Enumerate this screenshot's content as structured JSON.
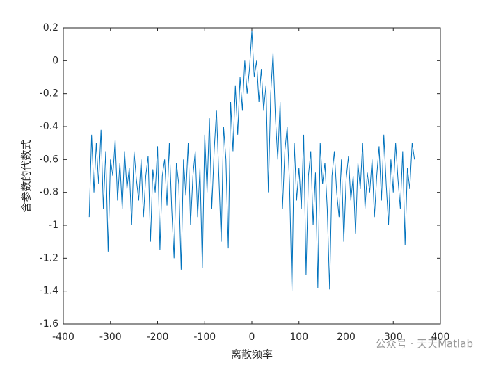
{
  "chart_data": {
    "type": "line",
    "x_label": "离散频率",
    "y_label": "含参数的代数式",
    "watermark": "公众号 · 天天Matlab",
    "xlim": [
      -400,
      400
    ],
    "xticks": [
      -400,
      -300,
      -200,
      -100,
      0,
      100,
      200,
      300,
      400
    ],
    "ylim": [
      -1.6,
      0.2
    ],
    "yticks": [
      0.2,
      0,
      -0.2,
      -0.4,
      -0.6,
      -0.8,
      -1,
      -1.2,
      -1.4,
      -1.6
    ],
    "x": [
      -345,
      -340,
      -335,
      -330,
      -325,
      -320,
      -315,
      -310,
      -305,
      -300,
      -295,
      -290,
      -285,
      -280,
      -275,
      -270,
      -265,
      -260,
      -255,
      -250,
      -245,
      -240,
      -235,
      -230,
      -225,
      -220,
      -215,
      -210,
      -205,
      -200,
      -195,
      -190,
      -185,
      -180,
      -175,
      -170,
      -165,
      -160,
      -155,
      -150,
      -145,
      -140,
      -135,
      -130,
      -125,
      -120,
      -115,
      -110,
      -105,
      -100,
      -95,
      -90,
      -85,
      -80,
      -75,
      -70,
      -65,
      -60,
      -55,
      -50,
      -45,
      -40,
      -35,
      -30,
      -25,
      -20,
      -15,
      -10,
      -5,
      0,
      5,
      10,
      15,
      20,
      25,
      30,
      35,
      40,
      45,
      50,
      55,
      60,
      65,
      70,
      75,
      80,
      85,
      90,
      95,
      100,
      105,
      110,
      115,
      120,
      125,
      130,
      135,
      140,
      145,
      150,
      155,
      160,
      165,
      170,
      175,
      180,
      185,
      190,
      195,
      200,
      205,
      210,
      215,
      220,
      225,
      230,
      235,
      240,
      245,
      250,
      255,
      260,
      265,
      270,
      275,
      280,
      285,
      290,
      295,
      300,
      305,
      310,
      315,
      320,
      325,
      330,
      335,
      340,
      345
    ],
    "series": [
      {
        "color": "#0072bd",
        "values": [
          -0.95,
          -0.45,
          -0.8,
          -0.5,
          -0.75,
          -0.42,
          -0.9,
          -0.55,
          -1.16,
          -0.6,
          -0.7,
          -0.48,
          -0.85,
          -0.62,
          -0.9,
          -0.55,
          -0.78,
          -0.65,
          -1.0,
          -0.55,
          -0.72,
          -0.85,
          -0.6,
          -0.95,
          -0.7,
          -0.58,
          -1.1,
          -0.66,
          -0.8,
          -0.52,
          -1.15,
          -0.7,
          -0.6,
          -0.88,
          -0.5,
          -0.9,
          -1.2,
          -0.62,
          -0.75,
          -1.27,
          -0.6,
          -0.82,
          -0.5,
          -1.0,
          -0.7,
          -0.55,
          -0.95,
          -0.65,
          -1.26,
          -0.45,
          -0.8,
          -0.35,
          -0.9,
          -0.55,
          -0.3,
          -0.7,
          -1.1,
          -0.4,
          -0.6,
          -1.14,
          -0.25,
          -0.55,
          -0.15,
          -0.45,
          -0.1,
          -0.3,
          0.0,
          -0.2,
          -0.05,
          0.18,
          -0.1,
          0.0,
          -0.25,
          -0.05,
          -0.3,
          -0.15,
          -0.8,
          -0.2,
          0.05,
          -0.35,
          -0.6,
          -0.25,
          -0.9,
          -0.55,
          -0.4,
          -0.75,
          -1.4,
          -0.5,
          -0.85,
          -0.65,
          -0.9,
          -0.45,
          -1.3,
          -0.7,
          -0.55,
          -1.0,
          -0.68,
          -1.38,
          -0.5,
          -0.75,
          -0.62,
          -0.9,
          -1.39,
          -0.7,
          -0.55,
          -0.8,
          -0.95,
          -0.6,
          -1.1,
          -0.72,
          -0.58,
          -0.85,
          -0.7,
          -1.05,
          -0.62,
          -0.78,
          -0.5,
          -0.9,
          -0.68,
          -0.8,
          -0.6,
          -0.95,
          -0.7,
          -0.52,
          -0.85,
          -0.45,
          -0.75,
          -1.0,
          -0.6,
          -0.8,
          -0.5,
          -0.72,
          -0.9,
          -0.55,
          -1.12,
          -0.65,
          -0.78,
          -0.5,
          -0.6
        ]
      }
    ]
  }
}
